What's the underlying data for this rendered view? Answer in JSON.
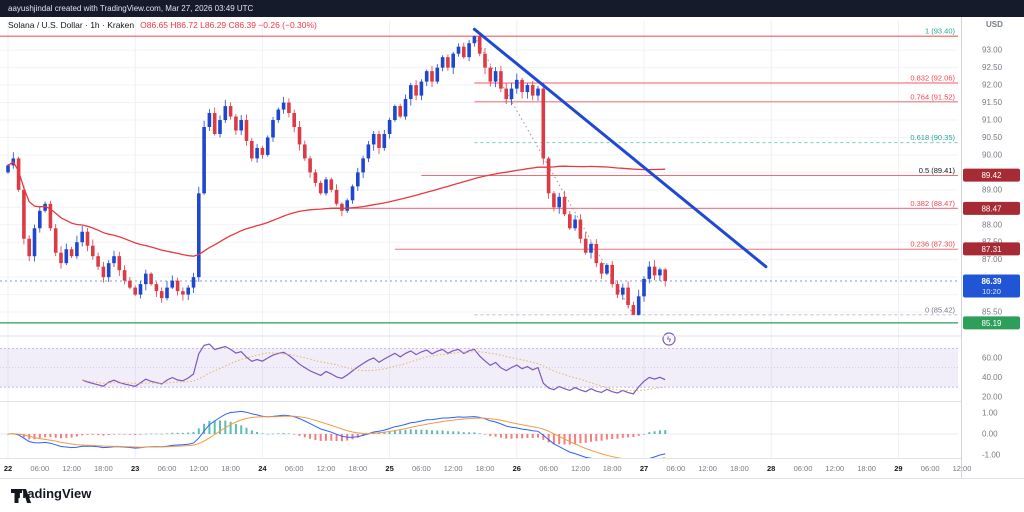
{
  "attribution": {
    "text": "aayushjindal created with TradingView.com, Mar 27, 2026 03:49 UTC"
  },
  "symbol": {
    "title": "Solana / U.S. Dollar · 1h · Kraken",
    "ohlc_text": "O86.65 H86.72 L86.29 C86.39 −0.26 (−0.30%)"
  },
  "axis": {
    "currency": "USD"
  },
  "footer": {
    "brand": "TradingView"
  },
  "colors": {
    "up_candle": "#1e46cf",
    "down_candle": "#dc3b45",
    "trend_line": "#1e49d2",
    "ma_line": "#e8393f",
    "support": "#2e9e5b",
    "fib_red": "#ef4652",
    "teal": "#26a69a",
    "gray": "#9598a1",
    "rsi": "#7e57c2",
    "rsi_ma": "#e8b45a",
    "macd": "#2962ff",
    "macd_signal": "#f59b42",
    "hist_up": "#26a69a",
    "hist_down": "#ef5350",
    "badge_red": "#a62b34",
    "badge_green": "#2e9e5b",
    "badge_blue": "#2056d6",
    "tick_text": "#787b86",
    "day_text": "#131722"
  },
  "chart_data": {
    "type": "candlestick",
    "title": "Solana / U.S. Dollar",
    "interval": "1h",
    "exchange": "Kraken",
    "x_start": "Mar 22 00:00 UTC",
    "hours_per_bar": 1,
    "ylim": [
      84.9,
      93.75
    ],
    "first_open": 89.5,
    "closes": [
      89.7,
      89.9,
      89.0,
      87.6,
      87.1,
      87.9,
      88.4,
      88.6,
      87.9,
      87.2,
      86.9,
      87.3,
      87.1,
      87.5,
      87.8,
      87.4,
      87.1,
      86.8,
      86.5,
      86.9,
      87.1,
      86.7,
      86.4,
      86.2,
      86.0,
      86.3,
      86.6,
      86.3,
      86.1,
      85.9,
      86.2,
      86.4,
      86.1,
      86.0,
      86.2,
      86.5,
      88.9,
      90.8,
      91.2,
      90.6,
      91.0,
      91.4,
      91.1,
      90.7,
      91.0,
      90.4,
      89.9,
      90.2,
      90.0,
      90.5,
      91.0,
      91.3,
      91.5,
      91.2,
      90.8,
      90.3,
      89.9,
      89.5,
      89.2,
      88.9,
      89.3,
      89.0,
      88.6,
      88.4,
      88.7,
      89.1,
      89.5,
      89.9,
      90.3,
      90.6,
      90.2,
      90.6,
      91.0,
      91.4,
      91.1,
      91.6,
      92.0,
      91.7,
      92.1,
      92.4,
      92.1,
      92.5,
      92.8,
      92.5,
      92.9,
      93.1,
      92.8,
      93.2,
      93.4,
      92.9,
      92.5,
      92.1,
      92.4,
      91.9,
      91.6,
      91.9,
      92.15,
      91.8,
      92.0,
      91.7,
      91.9,
      89.9,
      88.9,
      88.5,
      88.8,
      88.3,
      87.9,
      88.15,
      87.6,
      87.2,
      87.45,
      86.9,
      86.6,
      86.85,
      86.3,
      86.0,
      86.2,
      85.7,
      85.42,
      85.95,
      86.45,
      86.8,
      86.55,
      86.72,
      86.39
    ],
    "price_axis_ticks": [
      "93.00",
      "92.50",
      "92.00",
      "91.50",
      "91.00",
      "90.50",
      "90.00",
      "89.50",
      "89.00",
      "88.50",
      "88.00",
      "87.50",
      "87.00",
      "86.50",
      "86.00",
      "85.50"
    ],
    "fib_levels": [
      {
        "label": "1 (93.40)",
        "price": 93.4,
        "start_hour": 0,
        "label_color": "#26a69a",
        "line_color": "#ef4652",
        "dash": false
      },
      {
        "label": "0.832 (92.06)",
        "price": 92.06,
        "start_hour": 88,
        "label_color": "#ef4652",
        "line_color": "#ef4652",
        "dash": false
      },
      {
        "label": "0.764 (91.52)",
        "price": 91.52,
        "start_hour": 88,
        "label_color": "#ef4652",
        "line_color": "#ef4652",
        "dash": false
      },
      {
        "label": "0.618 (90.35)",
        "price": 90.35,
        "start_hour": 88,
        "label_color": "#26a69a",
        "line_color": "#26a69a",
        "dash": true
      },
      {
        "label": "0.5 (89.41)",
        "price": 89.41,
        "start_hour": 78,
        "label_color": "#131722",
        "line_color": "#ef4652",
        "dash": false
      },
      {
        "label": "0.382 (88.47)",
        "price": 88.47,
        "start_hour": 64,
        "label_color": "#ef4652",
        "line_color": "#ef4652",
        "dash": false
      },
      {
        "label": "0.236 (87.30)",
        "price": 87.3,
        "start_hour": 73,
        "label_color": "#ef4652",
        "line_color": "#ef4652",
        "dash": false
      },
      {
        "label": "0 (85.42)",
        "price": 85.42,
        "start_hour": 88,
        "label_color": "#787b86",
        "line_color": "#9598a1",
        "dash": true
      }
    ],
    "support_line": {
      "price": 85.19,
      "color": "#2e9e5b"
    },
    "trendline": {
      "start_hour": 88,
      "start_price": 93.6,
      "end_hour": 143,
      "end_price": 86.8,
      "color": "#1e49d2"
    },
    "zigzag": {
      "from_hour": 88,
      "from_price": 93.4,
      "to_hour": 118,
      "to_price": 85.42
    },
    "current": {
      "price": 86.39,
      "label": "86.39",
      "countdown": "10:20"
    },
    "badges": [
      {
        "label": "89.42",
        "price": 89.42,
        "bg": "#a62b34"
      },
      {
        "label": "88.47",
        "price": 88.47,
        "bg": "#a62b34"
      },
      {
        "label": "87.31",
        "price": 87.31,
        "bg": "#a62b34"
      },
      {
        "label": "85.19",
        "price": 85.19,
        "bg": "#2e9e5b"
      }
    ],
    "rsi": {
      "period": 14,
      "ma_period": 14,
      "band": [
        30,
        70
      ],
      "ticks": [
        "60.00",
        "40.00",
        "20.00"
      ],
      "tick_values": [
        60,
        40,
        20
      ]
    },
    "macd": {
      "fast": 12,
      "slow": 26,
      "signal": 9,
      "ticks": [
        "1.00",
        "0.00",
        "-1.00"
      ],
      "tick_values": [
        1,
        0,
        -1
      ]
    },
    "time_axis": [
      {
        "h": 0,
        "t": "22",
        "d": 1
      },
      {
        "h": 6,
        "t": "06:00"
      },
      {
        "h": 12,
        "t": "12:00"
      },
      {
        "h": 18,
        "t": "18:00"
      },
      {
        "h": 24,
        "t": "23",
        "d": 1
      },
      {
        "h": 30,
        "t": "06:00"
      },
      {
        "h": 36,
        "t": "12:00"
      },
      {
        "h": 42,
        "t": "18:00"
      },
      {
        "h": 48,
        "t": "24",
        "d": 1
      },
      {
        "h": 54,
        "t": "06:00"
      },
      {
        "h": 60,
        "t": "12:00"
      },
      {
        "h": 66,
        "t": "18:00"
      },
      {
        "h": 72,
        "t": "25",
        "d": 1
      },
      {
        "h": 78,
        "t": "06:00"
      },
      {
        "h": 84,
        "t": "12:00"
      },
      {
        "h": 90,
        "t": "18:00"
      },
      {
        "h": 96,
        "t": "26",
        "d": 1
      },
      {
        "h": 102,
        "t": "06:00"
      },
      {
        "h": 108,
        "t": "12:00"
      },
      {
        "h": 114,
        "t": "18:00"
      },
      {
        "h": 120,
        "t": "27",
        "d": 1
      },
      {
        "h": 126,
        "t": "06:00"
      },
      {
        "h": 132,
        "t": "12:00"
      },
      {
        "h": 138,
        "t": "18:00"
      },
      {
        "h": 144,
        "t": "28",
        "d": 1
      },
      {
        "h": 150,
        "t": "06:00"
      },
      {
        "h": 156,
        "t": "12:00"
      },
      {
        "h": 162,
        "t": "18:00"
      },
      {
        "h": 168,
        "t": "29",
        "d": 1
      },
      {
        "h": 174,
        "t": "06:00"
      },
      {
        "h": 180,
        "t": "12:00"
      }
    ]
  }
}
